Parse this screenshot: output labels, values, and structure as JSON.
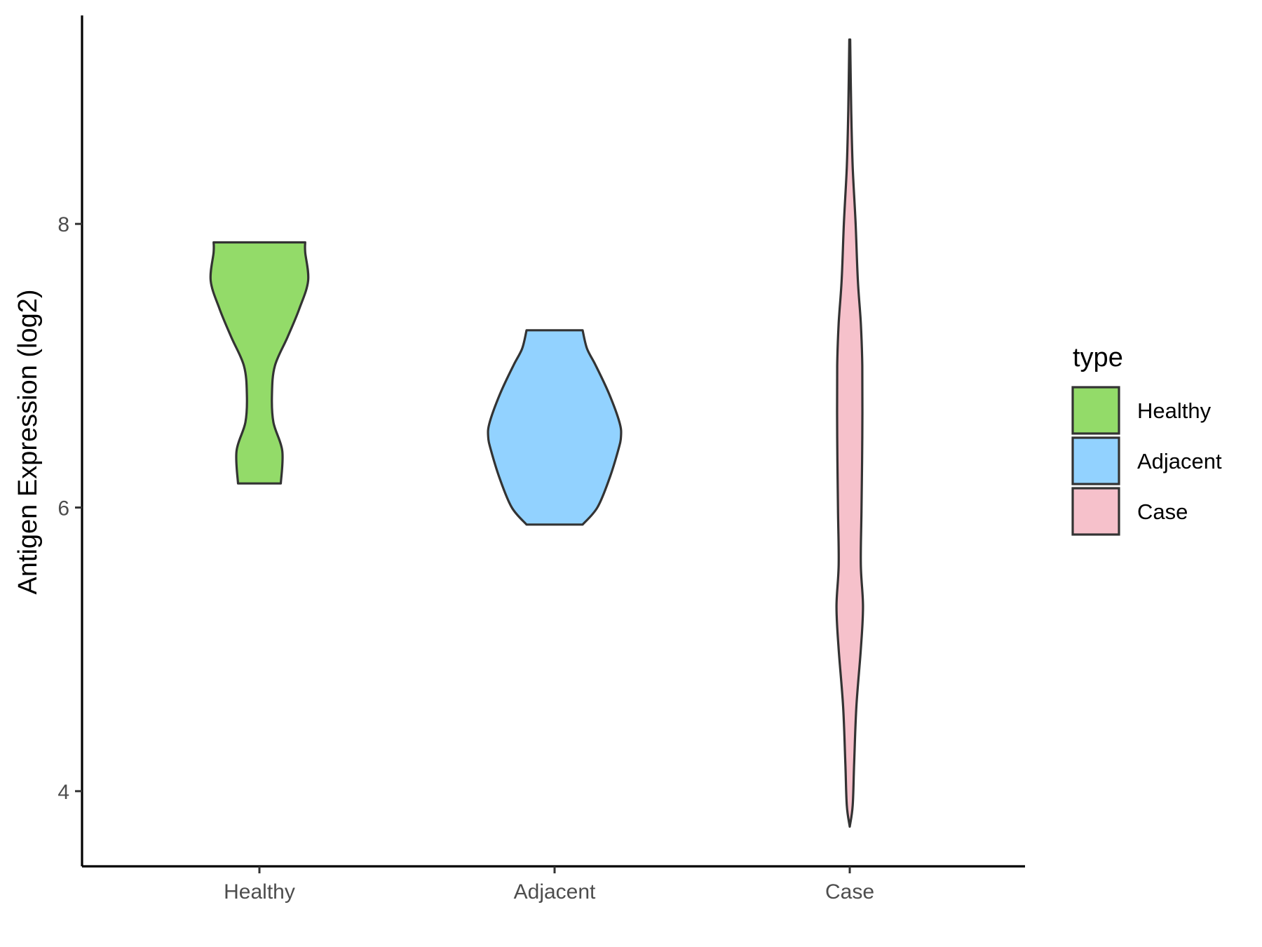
{
  "chart_data": {
    "type": "violin",
    "categories": [
      "Healthy",
      "Adjacent",
      "Case"
    ],
    "ylabel": "Antigen Expression (log2)",
    "xlabel": "",
    "ylim": [
      3.47,
      9.47
    ],
    "yticks": [
      4,
      6,
      8
    ],
    "grid": false,
    "legend": {
      "title": "type",
      "position": "right",
      "entries": [
        {
          "label": "Healthy",
          "color": "#93DB69"
        },
        {
          "label": "Adjacent",
          "color": "#92D2FF"
        },
        {
          "label": "Case",
          "color": "#F6C1CB"
        }
      ]
    },
    "series": [
      {
        "name": "Healthy",
        "color": "#93DB69",
        "profile": [
          [
            6.17,
            0.145
          ],
          [
            6.4,
            0.155
          ],
          [
            6.6,
            0.095
          ],
          [
            6.8,
            0.085
          ],
          [
            7.0,
            0.105
          ],
          [
            7.2,
            0.19
          ],
          [
            7.4,
            0.27
          ],
          [
            7.6,
            0.33
          ],
          [
            7.8,
            0.31
          ],
          [
            7.87,
            0.31
          ]
        ]
      },
      {
        "name": "Adjacent",
        "color": "#92D2FF",
        "profile": [
          [
            5.88,
            0.19
          ],
          [
            6.0,
            0.29
          ],
          [
            6.2,
            0.37
          ],
          [
            6.4,
            0.43
          ],
          [
            6.5,
            0.45
          ],
          [
            6.6,
            0.44
          ],
          [
            6.8,
            0.37
          ],
          [
            7.0,
            0.28
          ],
          [
            7.12,
            0.22
          ],
          [
            7.25,
            0.19
          ]
        ]
      },
      {
        "name": "Case",
        "color": "#F6C1CB",
        "profile": [
          [
            3.75,
            0.0
          ],
          [
            3.9,
            0.02
          ],
          [
            4.2,
            0.03
          ],
          [
            4.6,
            0.045
          ],
          [
            5.0,
            0.075
          ],
          [
            5.3,
            0.09
          ],
          [
            5.6,
            0.075
          ],
          [
            6.0,
            0.08
          ],
          [
            6.5,
            0.085
          ],
          [
            7.0,
            0.085
          ],
          [
            7.3,
            0.075
          ],
          [
            7.6,
            0.055
          ],
          [
            8.0,
            0.04
          ],
          [
            8.4,
            0.02
          ],
          [
            8.8,
            0.01
          ],
          [
            9.3,
            0.003
          ]
        ]
      }
    ]
  }
}
